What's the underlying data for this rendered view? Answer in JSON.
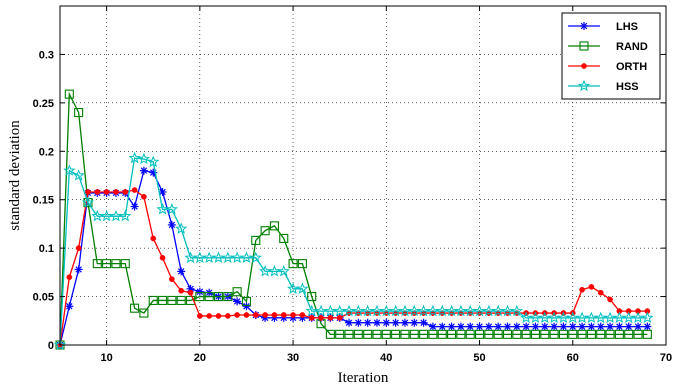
{
  "chart_data": {
    "type": "line",
    "title": "",
    "xlabel": "Iteration",
    "ylabel": "standard deviation",
    "xlim": [
      5,
      70
    ],
    "ylim": [
      0,
      0.35
    ],
    "xticks": [
      10,
      20,
      30,
      40,
      50,
      60,
      70
    ],
    "yticks": [
      0,
      0.05,
      0.1,
      0.15,
      0.2,
      0.25,
      0.3
    ],
    "grid": true,
    "legend_position": "top-right",
    "series": [
      {
        "name": "LHS",
        "color": "#0000ff",
        "marker": "asterisk",
        "x": [
          5,
          6,
          7,
          8,
          9,
          10,
          11,
          12,
          13,
          14,
          15,
          16,
          17,
          18,
          19,
          20,
          21,
          22,
          23,
          24,
          25,
          26,
          27,
          28,
          29,
          30,
          31,
          32,
          33,
          34,
          35,
          36,
          37,
          38,
          39,
          40,
          41,
          42,
          43,
          44,
          45,
          46,
          47,
          48,
          49,
          50,
          51,
          52,
          53,
          54,
          55,
          56,
          57,
          58,
          59,
          60,
          61,
          62,
          63,
          64,
          65,
          66,
          67,
          68
        ],
        "y": [
          0,
          0.04,
          0.078,
          0.157,
          0.157,
          0.157,
          0.157,
          0.157,
          0.143,
          0.18,
          0.178,
          0.158,
          0.124,
          0.076,
          0.058,
          0.055,
          0.054,
          0.05,
          0.05,
          0.045,
          0.04,
          0.031,
          0.028,
          0.028,
          0.028,
          0.028,
          0.028,
          0.028,
          0.028,
          0.028,
          0.028,
          0.023,
          0.023,
          0.023,
          0.023,
          0.023,
          0.023,
          0.023,
          0.023,
          0.023,
          0.019,
          0.019,
          0.019,
          0.019,
          0.019,
          0.019,
          0.019,
          0.019,
          0.019,
          0.019,
          0.019,
          0.019,
          0.019,
          0.019,
          0.019,
          0.019,
          0.019,
          0.019,
          0.019,
          0.019,
          0.019,
          0.019,
          0.019,
          0.019
        ]
      },
      {
        "name": "RAND",
        "color": "#007f00",
        "marker": "square",
        "x": [
          5,
          6,
          7,
          8,
          9,
          10,
          11,
          12,
          13,
          14,
          15,
          16,
          17,
          18,
          19,
          20,
          21,
          22,
          23,
          24,
          25,
          26,
          27,
          28,
          29,
          30,
          31,
          32,
          33,
          34,
          35,
          36,
          37,
          38,
          39,
          40,
          41,
          42,
          43,
          44,
          45,
          46,
          47,
          48,
          49,
          50,
          51,
          52,
          53,
          54,
          55,
          56,
          57,
          58,
          59,
          60,
          61,
          62,
          63,
          64,
          65,
          66,
          67,
          68
        ],
        "y": [
          0,
          0.259,
          0.24,
          0.147,
          0.084,
          0.084,
          0.084,
          0.084,
          0.038,
          0.033,
          0.046,
          0.046,
          0.046,
          0.046,
          0.046,
          0.05,
          0.05,
          0.05,
          0.05,
          0.055,
          0.045,
          0.108,
          0.118,
          0.123,
          0.11,
          0.084,
          0.084,
          0.05,
          0.022,
          0.011,
          0.011,
          0.011,
          0.011,
          0.011,
          0.011,
          0.011,
          0.011,
          0.011,
          0.011,
          0.011,
          0.011,
          0.011,
          0.011,
          0.011,
          0.011,
          0.011,
          0.011,
          0.011,
          0.011,
          0.011,
          0.011,
          0.011,
          0.011,
          0.011,
          0.011,
          0.011,
          0.011,
          0.011,
          0.011,
          0.011,
          0.011,
          0.011,
          0.011,
          0.011
        ]
      },
      {
        "name": "ORTH",
        "color": "#ff0000",
        "marker": "dot",
        "x": [
          5,
          6,
          7,
          8,
          9,
          10,
          11,
          12,
          13,
          14,
          15,
          16,
          17,
          18,
          19,
          20,
          21,
          22,
          23,
          24,
          25,
          26,
          27,
          28,
          29,
          30,
          31,
          32,
          33,
          34,
          35,
          36,
          37,
          38,
          39,
          40,
          41,
          42,
          43,
          44,
          45,
          46,
          47,
          48,
          49,
          50,
          51,
          52,
          53,
          54,
          55,
          56,
          57,
          58,
          59,
          60,
          61,
          62,
          63,
          64,
          65,
          66,
          67,
          68
        ],
        "y": [
          0,
          0.07,
          0.1,
          0.158,
          0.158,
          0.158,
          0.158,
          0.158,
          0.16,
          0.153,
          0.11,
          0.09,
          0.068,
          0.056,
          0.054,
          0.03,
          0.03,
          0.03,
          0.03,
          0.031,
          0.031,
          0.031,
          0.031,
          0.031,
          0.031,
          0.031,
          0.031,
          0.028,
          0.028,
          0.028,
          0.028,
          0.033,
          0.033,
          0.033,
          0.033,
          0.033,
          0.033,
          0.033,
          0.033,
          0.033,
          0.033,
          0.033,
          0.033,
          0.033,
          0.033,
          0.033,
          0.033,
          0.033,
          0.033,
          0.033,
          0.033,
          0.033,
          0.033,
          0.033,
          0.033,
          0.033,
          0.057,
          0.06,
          0.054,
          0.047,
          0.035,
          0.035,
          0.035,
          0.035
        ]
      },
      {
        "name": "HSS",
        "color": "#00bfbf",
        "marker": "star",
        "x": [
          5,
          6,
          7,
          8,
          9,
          10,
          11,
          12,
          13,
          14,
          15,
          16,
          17,
          18,
          19,
          20,
          21,
          22,
          23,
          24,
          25,
          26,
          27,
          28,
          29,
          30,
          31,
          32,
          33,
          34,
          35,
          36,
          37,
          38,
          39,
          40,
          41,
          42,
          43,
          44,
          45,
          46,
          47,
          48,
          49,
          50,
          51,
          52,
          53,
          54,
          55,
          56,
          57,
          58,
          59,
          60,
          61,
          62,
          63,
          64,
          65,
          66,
          67,
          68
        ],
        "y": [
          0,
          0.18,
          0.175,
          0.147,
          0.133,
          0.133,
          0.133,
          0.133,
          0.193,
          0.192,
          0.189,
          0.14,
          0.14,
          0.12,
          0.09,
          0.09,
          0.09,
          0.09,
          0.09,
          0.09,
          0.09,
          0.09,
          0.076,
          0.076,
          0.076,
          0.058,
          0.058,
          0.035,
          0.035,
          0.035,
          0.035,
          0.035,
          0.035,
          0.035,
          0.035,
          0.035,
          0.035,
          0.035,
          0.035,
          0.035,
          0.035,
          0.035,
          0.035,
          0.035,
          0.035,
          0.035,
          0.035,
          0.035,
          0.035,
          0.035,
          0.028,
          0.028,
          0.028,
          0.028,
          0.028,
          0.028,
          0.028,
          0.028,
          0.028,
          0.028,
          0.028,
          0.028,
          0.028,
          0.028
        ]
      }
    ]
  }
}
